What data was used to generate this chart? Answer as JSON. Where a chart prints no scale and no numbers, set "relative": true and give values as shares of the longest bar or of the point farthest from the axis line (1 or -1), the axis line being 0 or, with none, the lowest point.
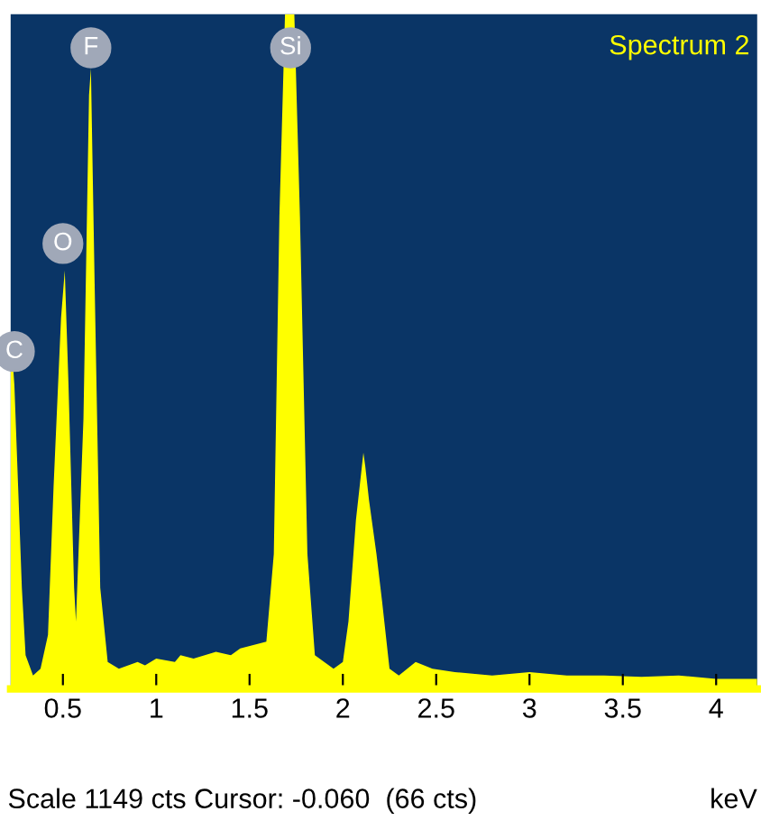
{
  "chart_data": {
    "type": "area",
    "title": "Spectrum 2",
    "xlabel": "keV",
    "relative": true,
    "tick_labels": "x",
    "grid": false,
    "legend": false,
    "annotations": [
      {
        "text": "C",
        "x": 0.24,
        "y": 0.5
      },
      {
        "text": "O",
        "x": 0.5,
        "y": 0.66
      },
      {
        "text": "F",
        "x": 0.65,
        "y": 0.95
      },
      {
        "text": "Si",
        "x": 1.72,
        "y": 0.95
      },
      "Scale 1149 cts Cursor: -0.060  (66 cts)"
    ],
    "xlim": [
      0.22,
      4.22
    ],
    "xticks": [
      0.5,
      1,
      1.5,
      2,
      2.5,
      3,
      3.5,
      4
    ],
    "series": [
      {
        "color": "#ffff00",
        "x": [
          0.22,
          0.24,
          0.26,
          0.28,
          0.3,
          0.34,
          0.38,
          0.42,
          0.45,
          0.49,
          0.51,
          0.53,
          0.56,
          0.57,
          0.61,
          0.64,
          0.65,
          0.67,
          0.7,
          0.74,
          0.8,
          0.9,
          0.94,
          1.0,
          1.1,
          1.13,
          1.2,
          1.32,
          1.4,
          1.45,
          1.52,
          1.59,
          1.63,
          1.66,
          1.69,
          1.74,
          1.77,
          1.81,
          1.85,
          1.9,
          1.95,
          2.0,
          2.03,
          2.07,
          2.11,
          2.12,
          2.14,
          2.18,
          2.21,
          2.25,
          2.3,
          2.39,
          2.48,
          2.6,
          2.8,
          3.0,
          3.2,
          3.4,
          3.6,
          3.8,
          4.0,
          4.22
        ],
        "values": [
          0.53,
          0.45,
          0.3,
          0.15,
          0.05,
          0.02,
          0.03,
          0.08,
          0.3,
          0.55,
          0.62,
          0.45,
          0.15,
          0.1,
          0.4,
          0.88,
          0.92,
          0.6,
          0.15,
          0.04,
          0.03,
          0.04,
          0.035,
          0.045,
          0.04,
          0.05,
          0.045,
          0.055,
          0.05,
          0.06,
          0.065,
          0.07,
          0.2,
          0.7,
          1.0,
          1.0,
          0.7,
          0.2,
          0.05,
          0.04,
          0.03,
          0.04,
          0.1,
          0.25,
          0.35,
          0.33,
          0.28,
          0.2,
          0.13,
          0.03,
          0.02,
          0.04,
          0.03,
          0.025,
          0.02,
          0.025,
          0.02,
          0.02,
          0.018,
          0.02,
          0.015,
          0.015
        ]
      }
    ]
  }
}
